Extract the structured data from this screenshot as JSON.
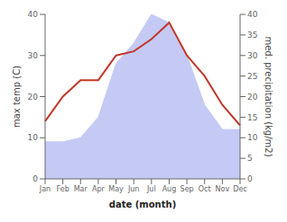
{
  "chart_data": {
    "type": "line",
    "xlabel": "date (month)",
    "ylabel": "max temp (C)",
    "y2label": "med. precipitation (kg/m2)",
    "categories": [
      "Jan",
      "Feb",
      "Mar",
      "Apr",
      "May",
      "Jun",
      "Jul",
      "Aug",
      "Sep",
      "Oct",
      "Nov",
      "Dec"
    ],
    "series": [
      {
        "type": "area",
        "color": "#c5caf5",
        "axis": "y2",
        "values": [
          9,
          9,
          10,
          15,
          28,
          33,
          40,
          38,
          30,
          18,
          12,
          12
        ]
      },
      {
        "type": "line",
        "color": "#c0392b",
        "values": [
          14,
          20,
          24,
          24,
          30,
          31,
          34,
          38,
          30,
          25,
          18,
          13
        ]
      }
    ],
    "ylim": [
      0,
      40
    ],
    "yticks": [
      0,
      10,
      20,
      30,
      40
    ],
    "y2lim": [
      0,
      40
    ],
    "y2ticks": [
      0,
      5,
      10,
      15,
      20,
      25,
      30,
      35,
      40
    ],
    "grid": false
  }
}
